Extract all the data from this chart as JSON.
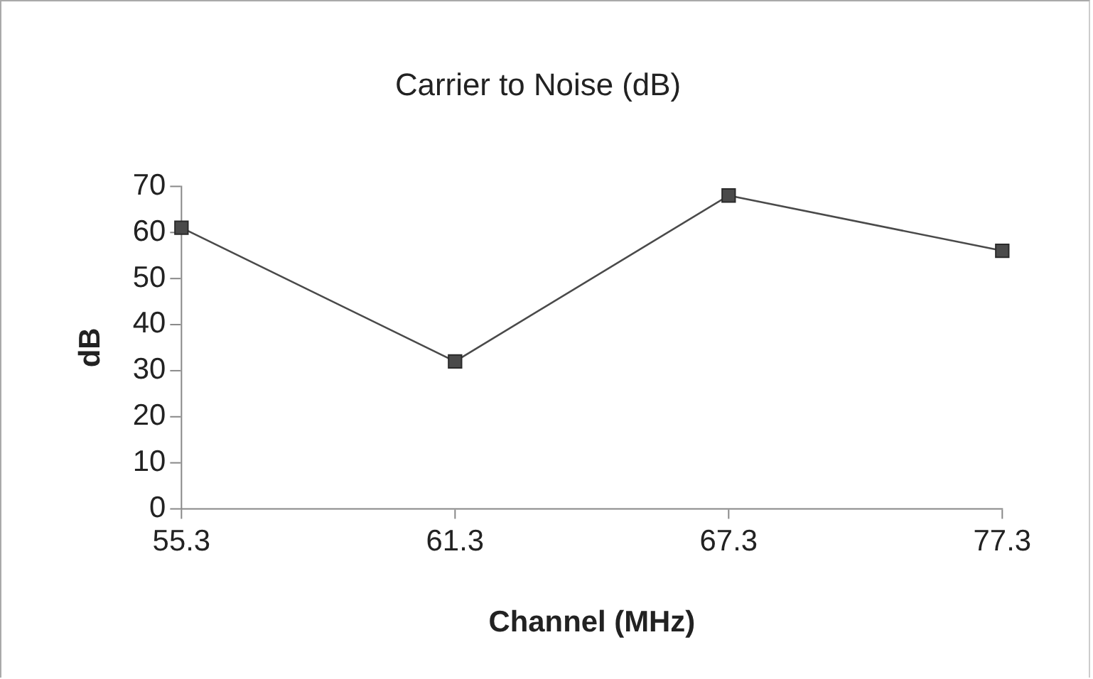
{
  "chart_data": {
    "type": "line",
    "title": "Carrier to Noise (dB)",
    "xlabel": "Channel (MHz)",
    "ylabel": "dB",
    "categories": [
      "55.3",
      "61.3",
      "67.3",
      "77.3"
    ],
    "values": [
      61,
      32,
      68,
      56
    ],
    "color": "#4a4a4a",
    "ylim": [
      0,
      70
    ],
    "yticks": [
      0,
      10,
      20,
      30,
      40,
      50,
      60,
      70
    ],
    "marker": "square",
    "line_style": "solid"
  }
}
